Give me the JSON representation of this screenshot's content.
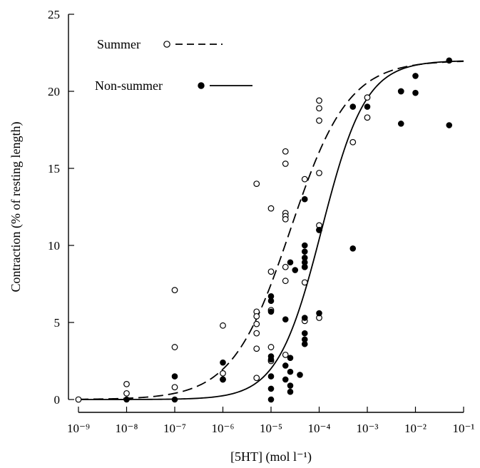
{
  "chart_data": {
    "type": "scatter",
    "xlabel": "[5HT] (mol l⁻¹)",
    "ylabel": "Contraction (% of resting length)",
    "x_scale": "log",
    "xlim": [
      -9,
      -1
    ],
    "ylim": [
      0,
      25
    ],
    "x_ticks": [
      -9,
      -8,
      -7,
      -6,
      -5,
      -4,
      -3,
      -2,
      -1
    ],
    "x_tick_labels": [
      "10⁻⁹",
      "10⁻⁸",
      "10⁻⁷",
      "10⁻⁶",
      "10⁻⁵",
      "10⁻⁴",
      "10⁻³",
      "10⁻²",
      "10⁻¹"
    ],
    "y_ticks": [
      0,
      5,
      10,
      15,
      20,
      25
    ],
    "y_tick_labels": [
      "0",
      "5",
      "10",
      "15",
      "20",
      "25"
    ],
    "grid": false,
    "legend_position": "top-left",
    "series": [
      {
        "name": "Summer",
        "marker": "open-circle",
        "line_style": "dashed",
        "points": [
          [
            -9,
            0
          ],
          [
            -8,
            1.0
          ],
          [
            -8,
            0.4
          ],
          [
            -7,
            7.1
          ],
          [
            -7,
            3.4
          ],
          [
            -7,
            0.8
          ],
          [
            -6,
            4.8
          ],
          [
            -6,
            1.7
          ],
          [
            -6,
            1.3
          ],
          [
            -5.3,
            14.0
          ],
          [
            -5.3,
            5.7
          ],
          [
            -5.3,
            5.4
          ],
          [
            -5.3,
            4.9
          ],
          [
            -5.3,
            4.3
          ],
          [
            -5.3,
            3.3
          ],
          [
            -5.3,
            1.4
          ],
          [
            -5,
            12.4
          ],
          [
            -5,
            8.3
          ],
          [
            -5,
            5.8
          ],
          [
            -5,
            3.4
          ],
          [
            -5,
            2.5
          ],
          [
            -4.7,
            16.1
          ],
          [
            -4.7,
            15.3
          ],
          [
            -4.7,
            12.1
          ],
          [
            -4.7,
            11.9
          ],
          [
            -4.7,
            11.7
          ],
          [
            -4.7,
            8.6
          ],
          [
            -4.7,
            7.7
          ],
          [
            -4.7,
            2.9
          ],
          [
            -4.3,
            14.3
          ],
          [
            -4.3,
            8.6
          ],
          [
            -4.3,
            7.6
          ],
          [
            -4.3,
            5.1
          ],
          [
            -4,
            19.4
          ],
          [
            -4,
            18.9
          ],
          [
            -4,
            18.1
          ],
          [
            -4,
            14.7
          ],
          [
            -4,
            11.3
          ],
          [
            -4,
            11.0
          ],
          [
            -4,
            5.3
          ],
          [
            -3.3,
            16.7
          ],
          [
            -3,
            19.6
          ],
          [
            -3,
            18.3
          ],
          [
            -2.3,
            20.0
          ]
        ],
        "curve": {
          "bottom": 0,
          "top": 22,
          "log_ec50": -4.6,
          "hill": 0.72
        }
      },
      {
        "name": "Non-summer",
        "marker": "filled-circle",
        "line_style": "solid",
        "points": [
          [
            -8,
            0
          ],
          [
            -7,
            1.5
          ],
          [
            -7,
            0
          ],
          [
            -6,
            2.4
          ],
          [
            -6,
            1.3
          ],
          [
            -5,
            6.7
          ],
          [
            -5,
            6.4
          ],
          [
            -5,
            5.7
          ],
          [
            -5,
            2.8
          ],
          [
            -5,
            2.6
          ],
          [
            -5,
            1.5
          ],
          [
            -5,
            0.7
          ],
          [
            -5,
            0
          ],
          [
            -4.7,
            5.2
          ],
          [
            -4.7,
            2.2
          ],
          [
            -4.7,
            1.3
          ],
          [
            -4.6,
            8.9
          ],
          [
            -4.6,
            2.7
          ],
          [
            -4.6,
            1.8
          ],
          [
            -4.6,
            0.9
          ],
          [
            -4.6,
            0.5
          ],
          [
            -4.5,
            8.4
          ],
          [
            -4.4,
            1.6
          ],
          [
            -4.3,
            13.0
          ],
          [
            -4.3,
            10.0
          ],
          [
            -4.3,
            9.6
          ],
          [
            -4.3,
            9.2
          ],
          [
            -4.3,
            8.9
          ],
          [
            -4.3,
            8.6
          ],
          [
            -4.3,
            5.3
          ],
          [
            -4.3,
            4.3
          ],
          [
            -4.3,
            3.9
          ],
          [
            -4.3,
            3.6
          ],
          [
            -4,
            11.0
          ],
          [
            -4,
            5.6
          ],
          [
            -3.3,
            19.0
          ],
          [
            -3.3,
            9.8
          ],
          [
            -3,
            19.0
          ],
          [
            -2.3,
            20.0
          ],
          [
            -2.3,
            17.9
          ],
          [
            -2,
            21.0
          ],
          [
            -2,
            19.9
          ],
          [
            -1.3,
            22.0
          ],
          [
            -1.3,
            17.8
          ]
        ],
        "curve": {
          "bottom": 0,
          "top": 22,
          "log_ec50": -3.95,
          "hill": 0.95
        }
      }
    ]
  }
}
